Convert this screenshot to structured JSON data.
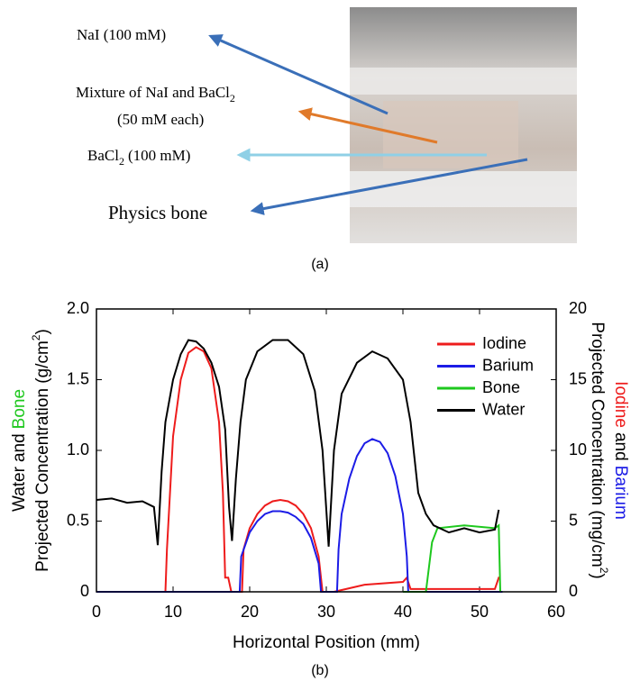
{
  "panel_a": {
    "nai": "NaI (100 mM)",
    "mixture": [
      "Mixture of NaI and BaCl",
      "2"
    ],
    "mixture_2": "(50 mM each)",
    "bacl2": [
      "BaCl",
      "2",
      "(100 mM)"
    ],
    "bone": "Physics bone",
    "caption": "(a)"
  },
  "chart_data": {
    "type": "line",
    "caption": "(b)",
    "xlabel": "Horizontal Position (mm)",
    "ylabel": {
      "line1": [
        {
          "text": "Water",
          "color": "#000000"
        },
        {
          "text": "and",
          "color": "#000000"
        },
        {
          "text": "Bone",
          "color": "#1ec81e"
        }
      ],
      "line2": [
        "Projected Concentration (g/cm",
        "2",
        ")"
      ]
    },
    "y2label": {
      "line1": [
        {
          "text": "Iodine",
          "color": "#ee1c1c"
        },
        {
          "text": "and",
          "color": "#000000"
        },
        {
          "text": "Barium",
          "color": "#1c1ce6"
        }
      ],
      "line2": [
        "Projected Concentration (mg/cm",
        "2",
        ")"
      ]
    },
    "xlim": [
      0,
      60
    ],
    "xticks": [
      0,
      10,
      20,
      30,
      40,
      50,
      60
    ],
    "ylim": [
      0,
      2
    ],
    "yticks": [
      0,
      0.5,
      {
        "value": 1,
        "label": "1.0"
      },
      1.5,
      {
        "value": 2,
        "label": "2.0"
      }
    ],
    "y2lim": [
      0,
      20
    ],
    "y2ticks": [
      0,
      5,
      10,
      15,
      20
    ],
    "legend": "upper right",
    "series": [
      {
        "name": "Iodine",
        "color": "#ee1c1c",
        "axis": "y2",
        "x": [
          0,
          9,
          9.2,
          10,
          11,
          12,
          13,
          14,
          15,
          16,
          16.5,
          16.8,
          17.2,
          17.6,
          19,
          19.2,
          20,
          21,
          22,
          23,
          24,
          25,
          26,
          27,
          28,
          29,
          29.5,
          31,
          35,
          40,
          40.5,
          41,
          44,
          52,
          52.5,
          52.7
        ],
        "values": [
          0,
          0,
          3,
          11,
          15,
          16.9,
          17.3,
          17,
          15.8,
          12,
          7,
          1,
          1,
          0,
          0,
          3,
          4.5,
          5.5,
          6.1,
          6.4,
          6.5,
          6.4,
          6.1,
          5.5,
          4.5,
          2.5,
          0,
          0,
          0.5,
          0.7,
          1,
          0.2,
          0.2,
          0.2,
          1,
          1
        ]
      },
      {
        "name": "Barium",
        "color": "#1c1ce6",
        "axis": "y2",
        "x": [
          0,
          18.7,
          18.9,
          20,
          21,
          22,
          23,
          24,
          25,
          26,
          27,
          28,
          29,
          29.3,
          31.4,
          31.6,
          32,
          33,
          34,
          35,
          36,
          37,
          38,
          39,
          40,
          40.5,
          40.7,
          53
        ],
        "values": [
          0,
          0,
          2.5,
          4.2,
          5,
          5.5,
          5.7,
          5.7,
          5.6,
          5.3,
          4.8,
          3.8,
          2,
          0,
          0,
          3,
          5.5,
          8,
          9.6,
          10.5,
          10.8,
          10.6,
          9.8,
          8.2,
          5.5,
          2.5,
          0,
          0
        ]
      },
      {
        "name": "Bone",
        "color": "#1ec81e",
        "x": [
          40,
          43,
          43.8,
          44.5,
          48,
          52,
          52.5,
          52.7
        ],
        "values": [
          0,
          0,
          0.35,
          0.45,
          0.47,
          0.45,
          0.47,
          0
        ]
      },
      {
        "name": "Water",
        "color": "#000000",
        "x": [
          0,
          2,
          4,
          6,
          7.5,
          8,
          8.5,
          9,
          10,
          11,
          12,
          13,
          14,
          15,
          16,
          16.8,
          17.3,
          17.7,
          18.2,
          18.8,
          19.5,
          21,
          23,
          25,
          27,
          28.5,
          29.5,
          30.3,
          31,
          32,
          34,
          36,
          38,
          40,
          41,
          42,
          43,
          44,
          46,
          48,
          50,
          52,
          52.5
        ],
        "values": [
          0.65,
          0.66,
          0.63,
          0.64,
          0.6,
          0.33,
          0.85,
          1.2,
          1.5,
          1.68,
          1.78,
          1.77,
          1.72,
          1.62,
          1.45,
          1.15,
          0.6,
          0.36,
          0.8,
          1.2,
          1.5,
          1.7,
          1.78,
          1.78,
          1.68,
          1.42,
          1,
          0.32,
          1,
          1.4,
          1.62,
          1.7,
          1.65,
          1.5,
          1.2,
          0.7,
          0.55,
          0.47,
          0.42,
          0.45,
          0.42,
          0.44,
          0.58
        ]
      }
    ]
  }
}
